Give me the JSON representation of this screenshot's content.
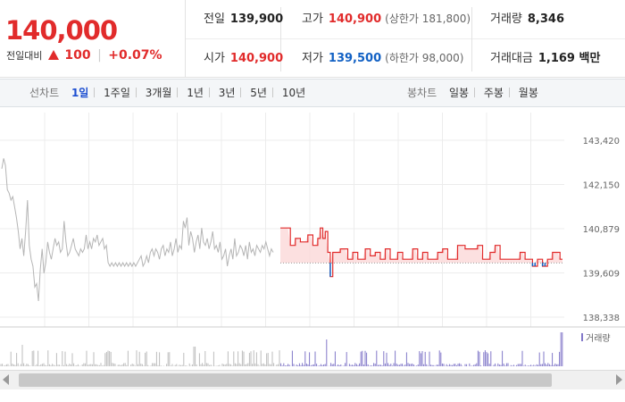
{
  "quote": {
    "current_price": "140,000",
    "change_label": "전일대비",
    "change_value": "100",
    "change_rate": "+0.07%",
    "up_color": "#e12b2b",
    "down_color": "#1261c4"
  },
  "info": {
    "prev_close_label": "전일",
    "prev_close": "139,900",
    "high_label": "고가",
    "high": "140,900",
    "upper_limit": "(상한가 181,800)",
    "volume_label": "거래량",
    "volume": "8,346",
    "open_label": "시가",
    "open": "140,900",
    "low_label": "저가",
    "low": "139,500",
    "lower_limit": "(하한가 98,000)",
    "amount_label": "거래대금",
    "amount": "1,169 백만"
  },
  "tabs": {
    "line_title": "선차트",
    "line_tabs": [
      "1일",
      "1주일",
      "3개월",
      "1년",
      "3년",
      "5년",
      "10년"
    ],
    "line_active": 0,
    "candle_title": "봉차트",
    "candle_tabs": [
      "일봉",
      "주봉",
      "월봉"
    ]
  },
  "chart_data": {
    "type": "line",
    "ylim": [
      138338,
      143420
    ],
    "yticks": [
      "143,420",
      "142,150",
      "140,879",
      "139,609",
      "138,338"
    ],
    "yticks_values": [
      143420,
      142150,
      140879,
      139609,
      138338
    ],
    "reference_price": 139900,
    "volume_legend": "거래량",
    "series": [
      {
        "values": [
          142600,
          142900,
          142700,
          142000,
          141900,
          141700,
          141800,
          141500,
          141200,
          140800,
          140300,
          140600,
          140100,
          140800,
          141700,
          140400,
          140000,
          139800,
          139200,
          139300,
          138800,
          139700,
          140300,
          139600,
          139900,
          140500,
          140200,
          140000,
          140300,
          140600,
          140400,
          140500,
          140200,
          140300,
          141100,
          140500,
          140100,
          140200,
          140400,
          140600,
          140300,
          140200,
          140100,
          140300,
          140200,
          140300,
          140700,
          140300,
          140500,
          140300,
          140600,
          140500,
          140700,
          140400,
          140500,
          140600,
          140300,
          140400,
          139900,
          139800,
          139900,
          139800,
          139900,
          139800,
          139900,
          139800,
          139900,
          139800,
          139900,
          139800,
          139900,
          139800,
          139900,
          139800,
          139900,
          140000,
          140100,
          139800,
          139900,
          140100,
          139900,
          140200,
          140300,
          140100,
          140300,
          140200,
          140000,
          140300,
          140400,
          140100,
          140300,
          140200,
          140500,
          140100,
          140300,
          140600,
          140200,
          140400,
          140300,
          141100,
          140900,
          141200,
          140400,
          140800,
          140600,
          140200,
          140500,
          140700,
          140300,
          140900,
          140500,
          140400,
          140600,
          140300,
          140500,
          140800,
          140300,
          140400,
          140200,
          140500,
          140000,
          140100,
          140300,
          139800,
          140100,
          140300,
          140000,
          140600,
          140100,
          140200,
          140400,
          140300,
          140100,
          140400,
          140000,
          140500,
          140200,
          140300,
          140100,
          140400,
          140300,
          140200,
          140400,
          140300,
          140500,
          140300,
          140100,
          140300,
          140200
        ],
        "color": "#b5b5b5"
      },
      {
        "values": [
          140900,
          140900,
          140900,
          140900,
          140400,
          140400,
          140600,
          140600,
          140500,
          140500,
          140500,
          140700,
          140700,
          140400,
          140400,
          140600,
          140900,
          140600,
          140800,
          140200,
          139500,
          140200,
          140200,
          140200,
          140300,
          140300,
          140300,
          140000,
          140000,
          140200,
          140200,
          140000,
          140000,
          140000,
          140300,
          140300,
          140100,
          140100,
          140200,
          140200,
          140000,
          140000,
          140300,
          140300,
          140000,
          140000,
          140000,
          140200,
          140200,
          140000,
          140000,
          140000,
          140000,
          140300,
          140300,
          140000,
          140000,
          140200,
          140200,
          140000,
          140000,
          140000,
          140000,
          140200,
          140200,
          140300,
          140300,
          140000,
          140000,
          140000,
          140000,
          140400,
          140400,
          140400,
          140300,
          140300,
          140300,
          140300,
          140300,
          140400,
          140400,
          140000,
          140000,
          140000,
          140200,
          140200,
          140400,
          140400,
          140000,
          140000,
          140000,
          140000,
          140000,
          140000,
          140000,
          140000,
          140200,
          140200,
          140000,
          140000,
          140000,
          139800,
          139800,
          140000,
          140000,
          139800,
          139800,
          140000,
          140000,
          140200,
          140200,
          140200,
          140000,
          140000
        ],
        "color": "#e12b2b"
      }
    ]
  }
}
